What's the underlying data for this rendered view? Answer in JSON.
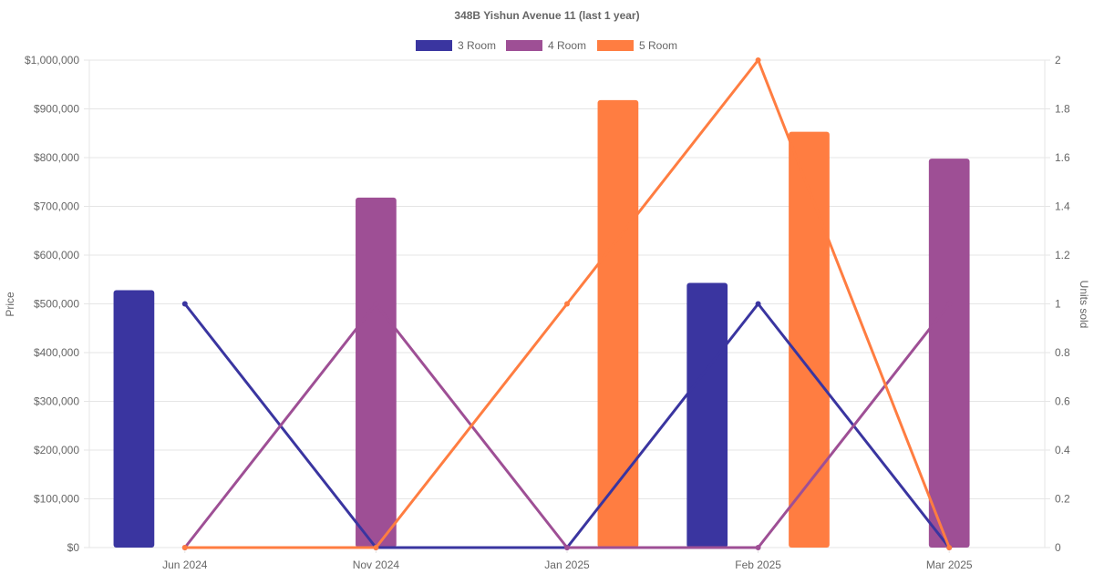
{
  "chart_data": {
    "type": "bar",
    "title": "348B Yishun Avenue 11 (last 1 year)",
    "categories": [
      "Jun 2024",
      "Nov 2024",
      "Jan 2025",
      "Feb 2025",
      "Mar 2025"
    ],
    "y_left": {
      "label": "Price",
      "range": [
        0,
        1000000
      ],
      "ticks": [
        "$0",
        "$100,000",
        "$200,000",
        "$300,000",
        "$400,000",
        "$500,000",
        "$600,000",
        "$700,000",
        "$800,000",
        "$900,000",
        "$1,000,000"
      ]
    },
    "y_right": {
      "label": "Units sold",
      "range": [
        0,
        2
      ],
      "ticks": [
        "0",
        "0.2",
        "0.4",
        "0.6",
        "0.8",
        "1",
        "1.2",
        "1.4",
        "1.6",
        "1.8",
        "2"
      ]
    },
    "grid": true,
    "legend_position": "top",
    "series": [
      {
        "name": "3 Room",
        "color": "#3a35a0",
        "price": [
          528000,
          null,
          null,
          543000,
          null
        ],
        "units": [
          1,
          0,
          0,
          1,
          0
        ]
      },
      {
        "name": "4 Room",
        "color": "#9e4f95",
        "price": [
          null,
          718000,
          null,
          null,
          798000
        ],
        "units": [
          0,
          1,
          0,
          0,
          1
        ]
      },
      {
        "name": "5 Room",
        "color": "#ff7d41",
        "price": [
          null,
          null,
          918000,
          853000,
          null
        ],
        "units": [
          0,
          0,
          1,
          2,
          0
        ]
      }
    ]
  }
}
